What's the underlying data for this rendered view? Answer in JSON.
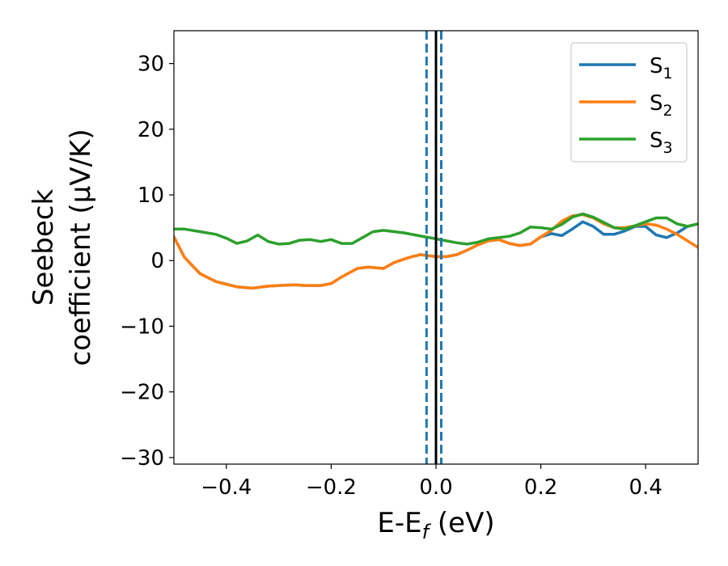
{
  "chart_data": {
    "type": "line",
    "xlabel": "E-E",
    "xlabel_subscript": "f",
    "xlabel_unit": " (eV)",
    "ylabel_line1": "Seebeck",
    "ylabel_line2": "coefficient  (μV/K)",
    "xlim": [
      -0.5,
      0.5
    ],
    "ylim": [
      -31,
      35
    ],
    "xticks": [
      -0.4,
      -0.2,
      0.0,
      0.2,
      0.4
    ],
    "xtick_labels": [
      "−0.4",
      "−0.2",
      "0.0",
      "0.2",
      "0.4"
    ],
    "yticks": [
      -30,
      -20,
      -10,
      0,
      10,
      20,
      30
    ],
    "ytick_labels": [
      "−30",
      "−20",
      "−10",
      "0",
      "10",
      "20",
      "30"
    ],
    "grid": false,
    "legend_position": "top-right",
    "series": [
      {
        "name": "S",
        "subscript": "1",
        "color": "#1f77b4",
        "x": [
          -0.5,
          -0.48,
          -0.45,
          -0.42,
          -0.4,
          -0.38,
          -0.35,
          -0.32,
          -0.3,
          -0.27,
          -0.25,
          -0.22,
          -0.2,
          -0.18,
          -0.15,
          -0.13,
          -0.1,
          -0.08,
          -0.05,
          -0.03,
          -0.01,
          0.0,
          0.02,
          0.04,
          0.06,
          0.08,
          0.1,
          0.12,
          0.14,
          0.16,
          0.18,
          0.2,
          0.22,
          0.24,
          0.26,
          0.28,
          0.3,
          0.32,
          0.34,
          0.36,
          0.38,
          0.4,
          0.42,
          0.44,
          0.46,
          0.48,
          0.5
        ],
        "y": [
          3.6,
          0.5,
          -2.0,
          -3.2,
          -3.6,
          -4.0,
          -4.2,
          -3.9,
          -3.8,
          -3.7,
          -3.8,
          -3.8,
          -3.5,
          -2.5,
          -1.2,
          -1.0,
          -1.2,
          -0.3,
          0.5,
          0.9,
          0.7,
          0.6,
          0.6,
          0.9,
          1.6,
          2.4,
          3.0,
          3.2,
          2.6,
          2.3,
          2.5,
          3.6,
          4.1,
          3.8,
          4.8,
          5.9,
          5.2,
          4.0,
          4.0,
          4.5,
          5.2,
          5.2,
          3.9,
          3.5,
          4.2,
          5.2,
          5.6
        ]
      },
      {
        "name": "S",
        "subscript": "2",
        "color": "#ff7f0e",
        "x": [
          -0.5,
          -0.48,
          -0.45,
          -0.42,
          -0.4,
          -0.38,
          -0.35,
          -0.32,
          -0.3,
          -0.27,
          -0.25,
          -0.22,
          -0.2,
          -0.18,
          -0.15,
          -0.13,
          -0.1,
          -0.08,
          -0.05,
          -0.03,
          -0.01,
          0.0,
          0.02,
          0.04,
          0.06,
          0.08,
          0.1,
          0.12,
          0.14,
          0.16,
          0.18,
          0.2,
          0.22,
          0.24,
          0.26,
          0.28,
          0.3,
          0.32,
          0.34,
          0.36,
          0.38,
          0.4,
          0.42,
          0.44,
          0.46,
          0.48,
          0.5
        ],
        "y": [
          3.6,
          0.5,
          -2.0,
          -3.2,
          -3.6,
          -4.0,
          -4.2,
          -3.9,
          -3.8,
          -3.7,
          -3.8,
          -3.8,
          -3.5,
          -2.5,
          -1.2,
          -1.0,
          -1.2,
          -0.3,
          0.5,
          0.9,
          0.7,
          0.6,
          0.6,
          0.9,
          1.6,
          2.4,
          3.0,
          3.2,
          2.6,
          2.3,
          2.5,
          3.6,
          4.6,
          6.0,
          6.8,
          7.0,
          6.5,
          5.6,
          5.0,
          5.0,
          5.3,
          5.6,
          5.4,
          4.8,
          4.0,
          3.0,
          2.0
        ]
      },
      {
        "name": "S",
        "subscript": "3",
        "color": "#2ca02c",
        "x": [
          -0.5,
          -0.48,
          -0.45,
          -0.42,
          -0.4,
          -0.38,
          -0.36,
          -0.34,
          -0.32,
          -0.3,
          -0.28,
          -0.26,
          -0.24,
          -0.22,
          -0.2,
          -0.18,
          -0.16,
          -0.14,
          -0.12,
          -0.1,
          -0.08,
          -0.06,
          -0.04,
          -0.02,
          0.0,
          0.02,
          0.04,
          0.06,
          0.08,
          0.1,
          0.12,
          0.14,
          0.16,
          0.18,
          0.2,
          0.22,
          0.24,
          0.26,
          0.28,
          0.3,
          0.32,
          0.34,
          0.36,
          0.38,
          0.4,
          0.42,
          0.44,
          0.46,
          0.48,
          0.5
        ],
        "y": [
          4.8,
          4.8,
          4.4,
          4.0,
          3.4,
          2.6,
          3.0,
          3.9,
          2.9,
          2.5,
          2.6,
          3.1,
          3.2,
          2.9,
          3.2,
          2.6,
          2.6,
          3.5,
          4.4,
          4.6,
          4.4,
          4.2,
          3.9,
          3.6,
          3.3,
          3.0,
          2.7,
          2.5,
          2.8,
          3.3,
          3.5,
          3.7,
          4.2,
          5.1,
          5.0,
          4.8,
          5.5,
          6.6,
          7.1,
          6.6,
          5.8,
          5.0,
          4.8,
          5.3,
          5.9,
          6.5,
          6.5,
          5.6,
          5.2,
          5.6
        ]
      }
    ],
    "vertical_lines": [
      {
        "x": 0.0,
        "color": "#000000",
        "style": "solid"
      },
      {
        "x": -0.018,
        "color": "#1f77b4",
        "style": "dashed"
      },
      {
        "x": 0.01,
        "color": "#1f77b4",
        "style": "dashed"
      }
    ]
  }
}
